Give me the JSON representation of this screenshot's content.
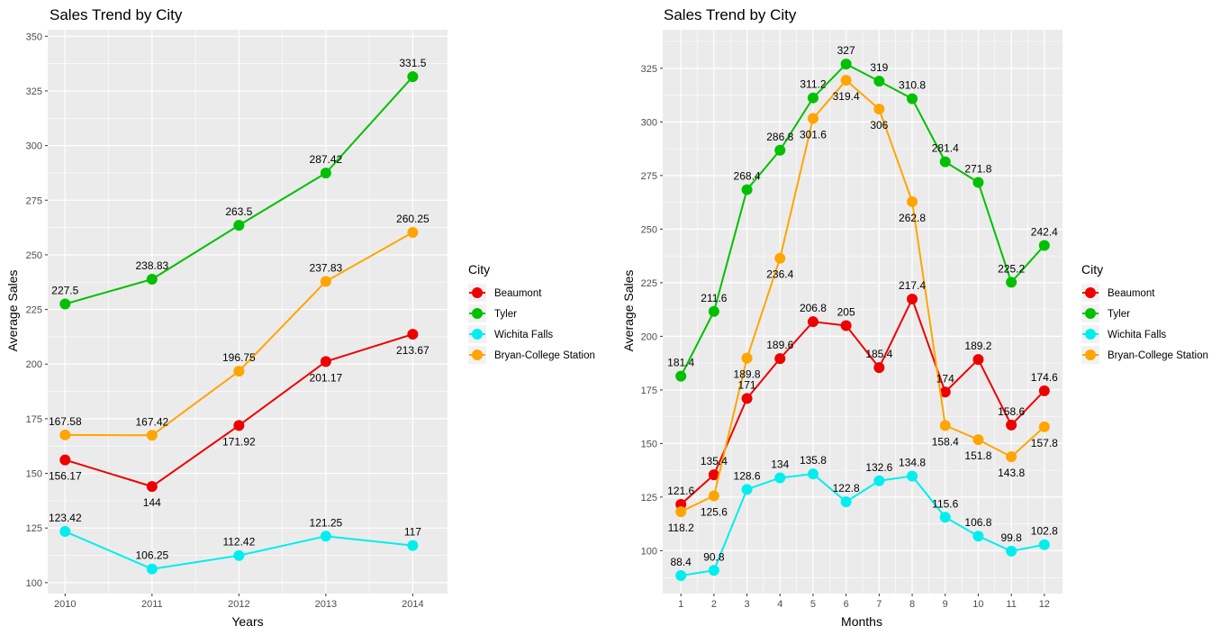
{
  "colors": {
    "Beaumont": "#ee0000",
    "Tyler": "#00c000",
    "Wichita Falls": "#00eeee",
    "Bryan-College Station": "#ffa500",
    "panel_bg": "#ebebeb",
    "grid": "#ffffff"
  },
  "chart_data": [
    {
      "type": "line",
      "title": "Sales Trend by City",
      "xlabel": "Years",
      "ylabel": "Average Sales",
      "x": [
        2010,
        2011,
        2012,
        2013,
        2014
      ],
      "x_ticks": [
        "2010",
        "2011",
        "2012",
        "2013",
        "2014"
      ],
      "xlim": [
        2009.8,
        2014.4
      ],
      "ylim": [
        95,
        353
      ],
      "y_ticks": [
        100,
        125,
        150,
        175,
        200,
        225,
        250,
        275,
        300,
        325,
        350
      ],
      "legend_title": "City",
      "legend_position": "right",
      "grid": true,
      "series": [
        {
          "name": "Beaumont",
          "values": [
            156.17,
            144,
            171.92,
            201.17,
            213.67
          ],
          "labels": [
            "156.17",
            "144",
            "171.92",
            "201.17",
            "213.67"
          ],
          "label_side": [
            "below",
            "below",
            "below",
            "below",
            "below"
          ]
        },
        {
          "name": "Tyler",
          "values": [
            227.5,
            238.83,
            263.5,
            287.42,
            331.5
          ],
          "labels": [
            "227.5",
            "238.83",
            "263.5",
            "287.42",
            "331.5"
          ],
          "label_side": [
            "above",
            "above",
            "above",
            "above",
            "above"
          ]
        },
        {
          "name": "Wichita Falls",
          "values": [
            123.42,
            106.25,
            112.42,
            121.25,
            117
          ],
          "labels": [
            "123.42",
            "106.25",
            "112.42",
            "121.25",
            "117"
          ],
          "label_side": [
            "above",
            "above",
            "above",
            "above",
            "above"
          ]
        },
        {
          "name": "Bryan-College Station",
          "values": [
            167.58,
            167.42,
            196.75,
            237.83,
            260.25
          ],
          "labels": [
            "167.58",
            "167.42",
            "196.75",
            "237.83",
            "260.25"
          ],
          "label_side": [
            "above",
            "above",
            "above",
            "above",
            "above"
          ]
        }
      ]
    },
    {
      "type": "line",
      "title": "Sales Trend by City",
      "xlabel": "Months",
      "ylabel": "Average Sales",
      "x": [
        1,
        2,
        3,
        4,
        5,
        6,
        7,
        8,
        9,
        10,
        11,
        12
      ],
      "x_ticks": [
        "1",
        "2",
        "3",
        "4",
        "5",
        "6",
        "7",
        "8",
        "9",
        "10",
        "11",
        "12"
      ],
      "xlim": [
        0.45,
        12.55
      ],
      "ylim": [
        80,
        343
      ],
      "y_ticks": [
        100,
        125,
        150,
        175,
        200,
        225,
        250,
        275,
        300,
        325
      ],
      "legend_title": "City",
      "legend_position": "right",
      "grid": true,
      "series": [
        {
          "name": "Beaumont",
          "values": [
            121.6,
            135.4,
            171,
            189.6,
            206.8,
            205,
            185.4,
            217.4,
            174,
            189.2,
            158.6,
            174.6
          ],
          "labels": [
            "121.6",
            "135.4",
            "171",
            "189.6",
            "206.8",
            "205",
            "185.4",
            "217.4",
            "174",
            "189.2",
            "158.6",
            "174.6"
          ],
          "label_side": [
            "above",
            "above",
            "above",
            "above",
            "above",
            "above",
            "above",
            "above",
            "above",
            "above",
            "above",
            "above"
          ]
        },
        {
          "name": "Tyler",
          "values": [
            181.4,
            211.6,
            268.4,
            286.8,
            311.2,
            327,
            319,
            310.8,
            281.4,
            271.8,
            225.2,
            242.4
          ],
          "labels": [
            "181.4",
            "211.6",
            "268.4",
            "286.8",
            "311.2",
            "327",
            "319",
            "310.8",
            "281.4",
            "271.8",
            "225.2",
            "242.4"
          ],
          "label_side": [
            "above",
            "above",
            "above",
            "above",
            "above",
            "above",
            "above",
            "above",
            "above",
            "above",
            "above",
            "above"
          ]
        },
        {
          "name": "Wichita Falls",
          "values": [
            88.4,
            90.8,
            128.6,
            134,
            135.8,
            122.8,
            132.6,
            134.8,
            115.6,
            106.8,
            99.8,
            102.8
          ],
          "labels": [
            "88.4",
            "90.8",
            "128.6",
            "134",
            "135.8",
            "122.8",
            "132.6",
            "134.8",
            "115.6",
            "106.8",
            "99.8",
            "102.8"
          ],
          "label_side": [
            "above",
            "above",
            "above",
            "above",
            "above",
            "above",
            "above",
            "above",
            "above",
            "above",
            "above",
            "above"
          ]
        },
        {
          "name": "Bryan-College Station",
          "values": [
            118.2,
            125.6,
            189.8,
            236.4,
            301.6,
            319.4,
            306,
            262.8,
            158.4,
            151.8,
            143.8,
            157.8
          ],
          "labels": [
            "118.2",
            "125.6",
            "189.8",
            "236.4",
            "301.6",
            "319.4",
            "306",
            "262.8",
            "158.4",
            "151.8",
            "143.8",
            "157.8"
          ],
          "label_side": [
            "below",
            "below",
            "below",
            "below",
            "below",
            "below",
            "below",
            "below",
            "below",
            "below",
            "below",
            "below"
          ]
        }
      ]
    }
  ]
}
